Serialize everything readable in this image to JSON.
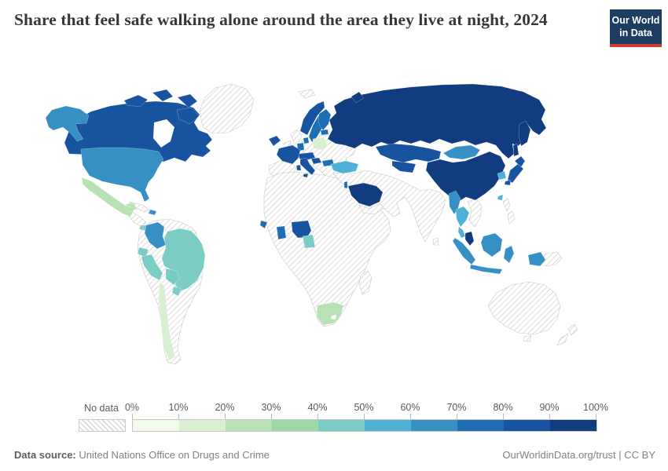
{
  "header": {
    "title": "Share that feel safe walking alone around the area they live at night, 2024",
    "logo": {
      "line1": "Our World",
      "line2": "in Data",
      "bg_color": "#1d3d63",
      "accent_color": "#cc3b33"
    }
  },
  "legend": {
    "no_data_label": "No data",
    "ticks": [
      "0%",
      "10%",
      "20%",
      "30%",
      "40%",
      "50%",
      "60%",
      "70%",
      "80%",
      "90%",
      "100%"
    ],
    "bins": [
      "0-10%",
      "10-20%",
      "20-30%",
      "30-40%",
      "40-50%",
      "50-60%",
      "60-70%",
      "70-80%",
      "80-90%",
      "90-100%"
    ],
    "colors": [
      "#f2faec",
      "#d9efd1",
      "#b8e2b5",
      "#9ed8a9",
      "#7accc4",
      "#4fb0d6",
      "#3690c4",
      "#1f6eb3",
      "#17539e",
      "#123c80"
    ]
  },
  "footer": {
    "source_label": "Data source:",
    "source_value": " United Nations Office on Drugs and Crime",
    "attribution": "OurWorldinData.org/trust | CC BY"
  },
  "chart_data": {
    "type": "choropleth",
    "title": "Share that feel safe walking alone around the area they live at night",
    "year": "2024",
    "unit": "% of people",
    "legend_position": "bottom",
    "color_scale_bins": [
      "0-10%",
      "10-20%",
      "20-30%",
      "30-40%",
      "40-50%",
      "50-60%",
      "60-70%",
      "70-80%",
      "80-90%",
      "90-100%"
    ],
    "no_data_style": "diagonal-hatch",
    "countries": [
      {
        "id": "canada",
        "name": "Canada",
        "bin": "80-90%"
      },
      {
        "id": "arctic-islands",
        "name": "Canada (Arctic islands)",
        "bin": "80-90%"
      },
      {
        "id": "alaska",
        "name": "United States (Alaska)",
        "bin": "60-70%"
      },
      {
        "id": "usa",
        "name": "United States",
        "bin": "60-70%"
      },
      {
        "id": "mexico",
        "name": "Mexico",
        "bin": "20-30%"
      },
      {
        "id": "panama",
        "name": "Panama",
        "bin": "40-50%"
      },
      {
        "id": "dominican-republic",
        "name": "Dominican Republic",
        "bin": "60-70%"
      },
      {
        "id": "colombia",
        "name": "Colombia",
        "bin": "60-70%"
      },
      {
        "id": "ecuador",
        "name": "Ecuador",
        "bin": "40-50%"
      },
      {
        "id": "peru",
        "name": "Peru",
        "bin": "40-50%"
      },
      {
        "id": "brazil",
        "name": "Brazil",
        "bin": "40-50%"
      },
      {
        "id": "bolivia",
        "name": "Bolivia",
        "bin": "40-50%"
      },
      {
        "id": "paraguay",
        "name": "Paraguay",
        "bin": "40-50%"
      },
      {
        "id": "chile",
        "name": "Chile",
        "bin": "10-20%"
      },
      {
        "id": "iceland",
        "name": "Iceland",
        "bin": "80-90%"
      },
      {
        "id": "norway",
        "name": "Norway",
        "bin": "80-90%"
      },
      {
        "id": "sweden",
        "name": "Sweden",
        "bin": "70-80%"
      },
      {
        "id": "finland",
        "name": "Finland",
        "bin": "70-80%"
      },
      {
        "id": "denmark",
        "name": "Denmark",
        "bin": "70-80%"
      },
      {
        "id": "estonia",
        "name": "Estonia",
        "bin": "70-80%"
      },
      {
        "id": "benelux",
        "name": "Netherlands / Belgium",
        "bin": "70-80%"
      },
      {
        "id": "france",
        "name": "France",
        "bin": "80-90%"
      },
      {
        "id": "switzerland-austria",
        "name": "Switzerland / Austria",
        "bin": "80-90%"
      },
      {
        "id": "italy",
        "name": "Italy",
        "bin": "80-90%"
      },
      {
        "id": "croatia-slovenia",
        "name": "Slovenia / Croatia",
        "bin": "80-90%"
      },
      {
        "id": "poland",
        "name": "Poland",
        "bin": "10-20%"
      },
      {
        "id": "bulgaria",
        "name": "Bulgaria",
        "bin": "70-80%"
      },
      {
        "id": "turkey",
        "name": "Turkey",
        "bin": "50-60%"
      },
      {
        "id": "israel",
        "name": "Israel",
        "bin": "70-80%"
      },
      {
        "id": "russia",
        "name": "Russia",
        "bin": "90-100%"
      },
      {
        "id": "novaya-zemlya",
        "name": "Russia (Novaya Zemlya)",
        "bin": "90-100%"
      },
      {
        "id": "kamchatka",
        "name": "Russia (Kamchatka)",
        "bin": "90-100%"
      },
      {
        "id": "sakhalin",
        "name": "Russia (Sakhalin)",
        "bin": "90-100%"
      },
      {
        "id": "kazakhstan",
        "name": "Kazakhstan",
        "bin": "80-90%"
      },
      {
        "id": "uzbekistan",
        "name": "Uzbekistan / Turkmenistan",
        "bin": "80-90%"
      },
      {
        "id": "saudi-arabia",
        "name": "Saudi Arabia",
        "bin": "90-100%"
      },
      {
        "id": "china",
        "name": "China",
        "bin": "90-100%"
      },
      {
        "id": "mongolia",
        "name": "Mongolia",
        "bin": "60-70%"
      },
      {
        "id": "south-korea",
        "name": "South Korea",
        "bin": "50-60%"
      },
      {
        "id": "japan",
        "name": "Japan",
        "bin": "80-90%"
      },
      {
        "id": "taiwan",
        "name": "Taiwan",
        "bin": "50-60%"
      },
      {
        "id": "myanmar",
        "name": "Myanmar",
        "bin": "60-70%"
      },
      {
        "id": "thailand",
        "name": "Thailand",
        "bin": "50-60%"
      },
      {
        "id": "malaysia",
        "name": "Malaysia (peninsular)",
        "bin": "90-100%"
      },
      {
        "id": "sumatra",
        "name": "Indonesia (Sumatra)",
        "bin": "60-70%"
      },
      {
        "id": "borneo",
        "name": "Indonesia / Malaysia (Borneo)",
        "bin": "60-70%"
      },
      {
        "id": "java",
        "name": "Indonesia (Java)",
        "bin": "60-70%"
      },
      {
        "id": "sulawesi",
        "name": "Indonesia (Sulawesi)",
        "bin": "60-70%"
      },
      {
        "id": "west-papua",
        "name": "Indonesia (West Papua)",
        "bin": "60-70%"
      },
      {
        "id": "sierra-leone",
        "name": "Sierra Leone",
        "bin": "70-80%"
      },
      {
        "id": "ghana",
        "name": "Ghana",
        "bin": "70-80%"
      },
      {
        "id": "nigeria",
        "name": "Nigeria",
        "bin": "80-90%"
      },
      {
        "id": "cameroon",
        "name": "Cameroon",
        "bin": "40-50%"
      },
      {
        "id": "south-africa",
        "name": "South Africa",
        "bin": "20-30%"
      }
    ],
    "no_data_regions": [
      {
        "id": "greenland",
        "label": "Greenland"
      },
      {
        "id": "cuba",
        "label": "Cuba"
      },
      {
        "id": "central-america",
        "label": "Central America"
      },
      {
        "id": "south-america-base",
        "label": "Venezuela / Guianas / Argentina"
      },
      {
        "id": "uk",
        "label": "United Kingdom"
      },
      {
        "id": "ireland",
        "label": "Ireland"
      },
      {
        "id": "iberia",
        "label": "Spain / Portugal"
      },
      {
        "id": "central-europe",
        "label": "Germany / Central & Eastern Europe / Ukraine / Greece"
      },
      {
        "id": "svalbard",
        "label": "Svalbard"
      },
      {
        "id": "africa-base",
        "label": "Africa (most countries)"
      },
      {
        "id": "madagascar",
        "label": "Madagascar"
      },
      {
        "id": "yemen-oman",
        "label": "Yemen / Oman"
      },
      {
        "id": "middle-east-south-asia",
        "label": "Iran / Pakistan / India / South Asia"
      },
      {
        "id": "sri-lanka",
        "label": "Sri Lanka"
      },
      {
        "id": "indochina",
        "label": "Vietnam / Laos / Cambodia"
      },
      {
        "id": "north-korea",
        "label": "North Korea"
      },
      {
        "id": "philippines",
        "label": "Philippines"
      },
      {
        "id": "papua-new-guinea",
        "label": "Papua New Guinea"
      },
      {
        "id": "australia",
        "label": "Australia"
      },
      {
        "id": "tasmania",
        "label": "Tasmania"
      },
      {
        "id": "new-zealand",
        "label": "New Zealand"
      }
    ]
  }
}
